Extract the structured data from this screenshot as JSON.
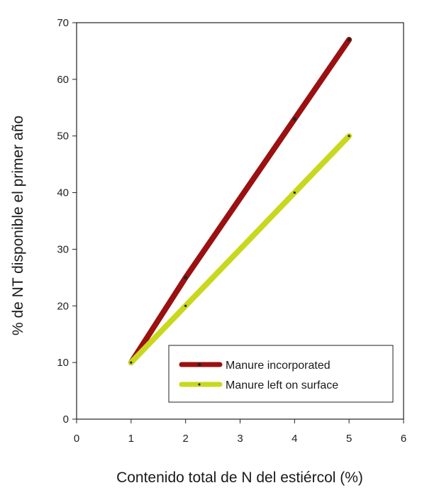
{
  "chart_data": {
    "type": "line",
    "title": "",
    "xlabel": "Contenido total de N del estiércol (%)",
    "ylabel": "% de NT disponible el primer año",
    "xlim": [
      0,
      6
    ],
    "ylim": [
      0,
      70
    ],
    "xticks": [
      "0",
      "1",
      "2",
      "3",
      "4",
      "5",
      "6"
    ],
    "yticks": [
      "0",
      "10",
      "20",
      "30",
      "40",
      "50",
      "60",
      "70"
    ],
    "grid": false,
    "legend_position": "bottom-right",
    "series": [
      {
        "name": "Manure incorporated",
        "color": "#9b1010",
        "marker": "circle",
        "points": [
          [
            1,
            10
          ],
          [
            2,
            25
          ],
          [
            4,
            53
          ],
          [
            5,
            67
          ]
        ]
      },
      {
        "name": "Manure left on surface",
        "color": "#c9d81e",
        "marker": "dot",
        "points": [
          [
            1,
            10
          ],
          [
            2,
            20
          ],
          [
            4,
            40
          ],
          [
            5,
            50
          ]
        ]
      }
    ]
  }
}
